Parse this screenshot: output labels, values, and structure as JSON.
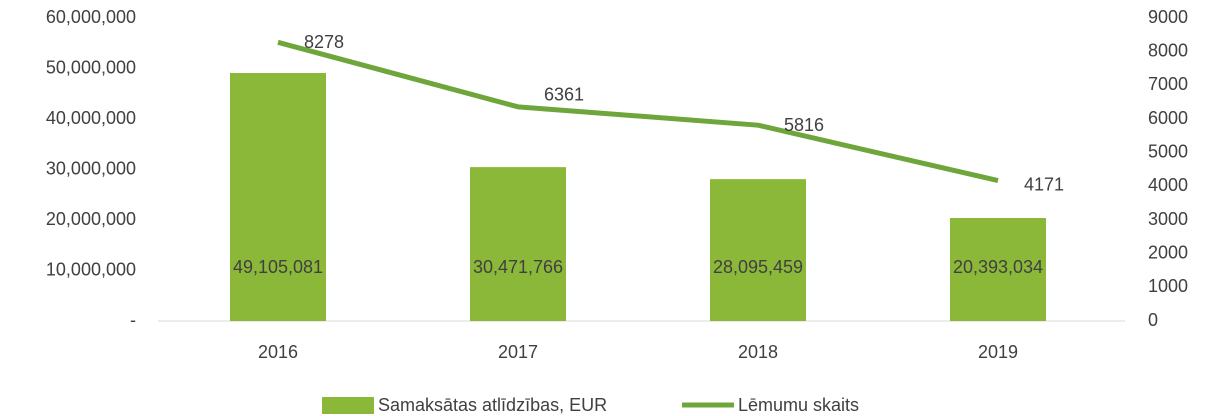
{
  "chart_data": {
    "type": "combo",
    "categories": [
      "2016",
      "2017",
      "2018",
      "2019"
    ],
    "series": [
      {
        "name": "Samaksātas atlīdzības, EUR",
        "type": "bar",
        "color": "#8cb83a",
        "axis": "y",
        "values": [
          49105081,
          30471766,
          28095459,
          20393034
        ],
        "value_labels": [
          "49,105,081",
          "30,471,766",
          "28,095,459",
          "20,393,034"
        ]
      },
      {
        "name": "Lēmumu skaits",
        "type": "line",
        "color": "#6ea63c",
        "axis": "y2",
        "values": [
          8278,
          6361,
          5816,
          4171
        ]
      }
    ],
    "ylim": [
      0,
      60000000
    ],
    "yticks": [
      {
        "value": 0,
        "label": "-"
      },
      {
        "value": 10000000,
        "label": "10,000,000"
      },
      {
        "value": 20000000,
        "label": "20,000,000"
      },
      {
        "value": 30000000,
        "label": "30,000,000"
      },
      {
        "value": 40000000,
        "label": "40,000,000"
      },
      {
        "value": 50000000,
        "label": "50,000,000"
      },
      {
        "value": 60000000,
        "label": "60,000,000"
      }
    ],
    "y2lim": [
      0,
      9000
    ],
    "y2ticks": [
      0,
      1000,
      2000,
      3000,
      4000,
      5000,
      6000,
      7000,
      8000,
      9000
    ],
    "grid": false,
    "legend": "bottom"
  }
}
